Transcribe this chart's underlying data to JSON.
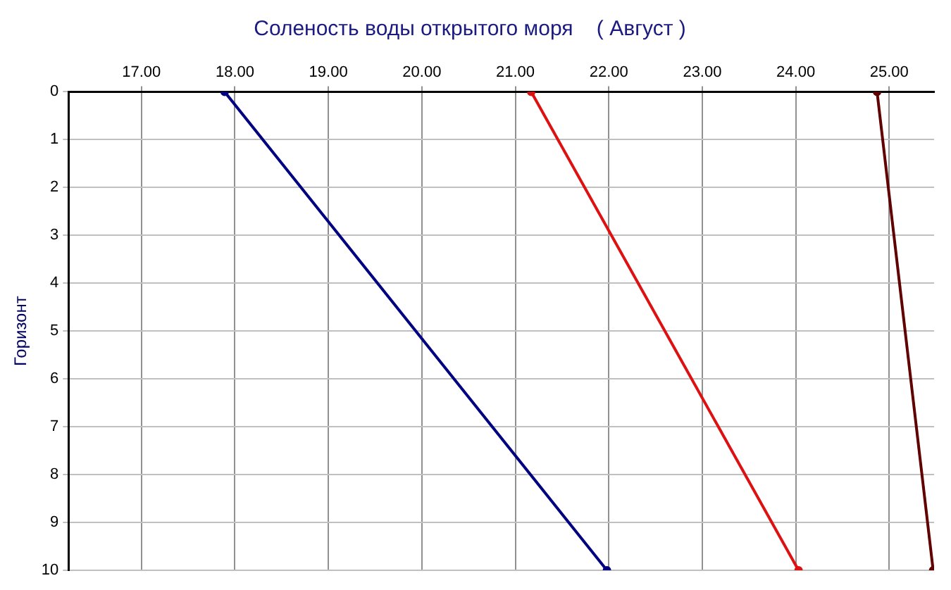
{
  "chart_data": {
    "type": "line",
    "title": "Соленость воды открытого моря    ( Август )",
    "ylabel": "Горизонт",
    "xlim": [
      16.22,
      25.48
    ],
    "xticks": [
      {
        "value": 17,
        "label": "17.00"
      },
      {
        "value": 18,
        "label": "18.00"
      },
      {
        "value": 19,
        "label": "19.00"
      },
      {
        "value": 20,
        "label": "20.00"
      },
      {
        "value": 21,
        "label": "21.00"
      },
      {
        "value": 22,
        "label": "22.00"
      },
      {
        "value": 23,
        "label": "23.00"
      },
      {
        "value": 24,
        "label": "24.00"
      },
      {
        "value": 25,
        "label": "25.00"
      }
    ],
    "ylim": [
      10,
      0
    ],
    "yticks": [
      0,
      1,
      2,
      3,
      4,
      5,
      6,
      7,
      8,
      9,
      10
    ],
    "series": [
      {
        "color": "#000080",
        "x": [
          17.89,
          21.98
        ],
        "values": [
          0,
          10
        ]
      },
      {
        "color": "#dd1111",
        "x": [
          21.17,
          24.03
        ],
        "values": [
          0,
          10
        ]
      },
      {
        "color": "#600000",
        "x": [
          24.87,
          25.47
        ],
        "values": [
          0,
          10
        ]
      }
    ],
    "grid": true,
    "legend": false,
    "marker": "circle",
    "line_style": "solid"
  }
}
